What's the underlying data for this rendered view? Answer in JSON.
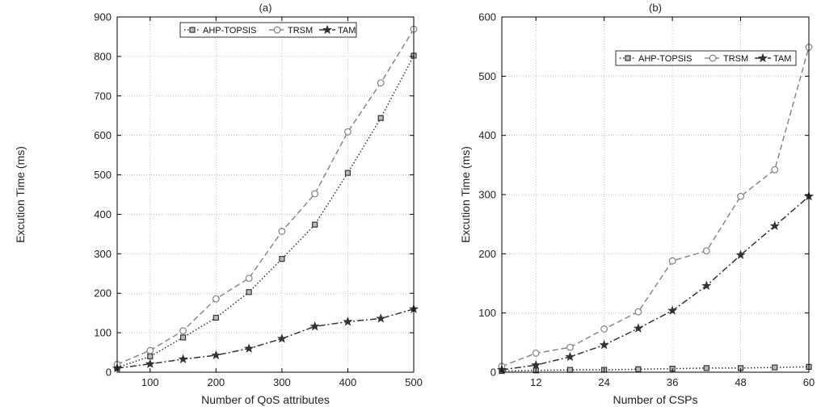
{
  "chart_data": [
    {
      "type": "line",
      "title": "(a)",
      "xlabel": "Number of QoS attributes",
      "ylabel": "Excution Time (ms)",
      "xlim": [
        50,
        500
      ],
      "ylim": [
        0,
        900
      ],
      "xticks": [
        100,
        200,
        300,
        400,
        500
      ],
      "yticks": [
        0,
        100,
        200,
        300,
        400,
        500,
        600,
        700,
        800,
        900
      ],
      "grid": true,
      "legend": "top-right",
      "x": [
        50,
        100,
        150,
        200,
        250,
        300,
        350,
        400,
        450,
        500
      ],
      "series": [
        {
          "name": "AHP-TOPSIS",
          "marker": "square",
          "dash": "dotted",
          "color": "#333333",
          "values": [
            12,
            40,
            88,
            138,
            203,
            287,
            374,
            505,
            644,
            802
          ]
        },
        {
          "name": "TRSM",
          "marker": "circle",
          "dash": "dashed",
          "color": "#888888",
          "values": [
            20,
            55,
            105,
            186,
            238,
            357,
            452,
            609,
            733,
            869
          ]
        },
        {
          "name": "TAM",
          "marker": "star",
          "dash": "dashdot",
          "color": "#333333",
          "values": [
            10,
            21,
            33,
            43,
            60,
            85,
            116,
            128,
            136,
            160
          ]
        }
      ]
    },
    {
      "type": "line",
      "title": "(b)",
      "xlabel": "Number of CSPs",
      "ylabel": "Excution Time (ms)",
      "xlim": [
        6,
        60
      ],
      "ylim": [
        0,
        600
      ],
      "xticks": [
        12,
        24,
        36,
        48,
        60
      ],
      "yticks": [
        0,
        100,
        200,
        300,
        400,
        500,
        600
      ],
      "grid": true,
      "legend": "top-right",
      "x": [
        6,
        12,
        18,
        24,
        30,
        36,
        42,
        48,
        54,
        60
      ],
      "series": [
        {
          "name": "AHP-TOPSIS",
          "marker": "square",
          "dash": "dotted",
          "color": "#333333",
          "values": [
            2,
            3,
            4,
            4,
            5,
            6,
            7,
            7,
            8,
            9
          ]
        },
        {
          "name": "TRSM",
          "marker": "circle",
          "dash": "dashed",
          "color": "#888888",
          "values": [
            10,
            32,
            42,
            73,
            102,
            188,
            205,
            297,
            342,
            549
          ]
        },
        {
          "name": "TAM",
          "marker": "star",
          "dash": "dashdot",
          "color": "#333333",
          "values": [
            4,
            12,
            26,
            46,
            74,
            104,
            146,
            198,
            247,
            297
          ]
        }
      ]
    }
  ]
}
